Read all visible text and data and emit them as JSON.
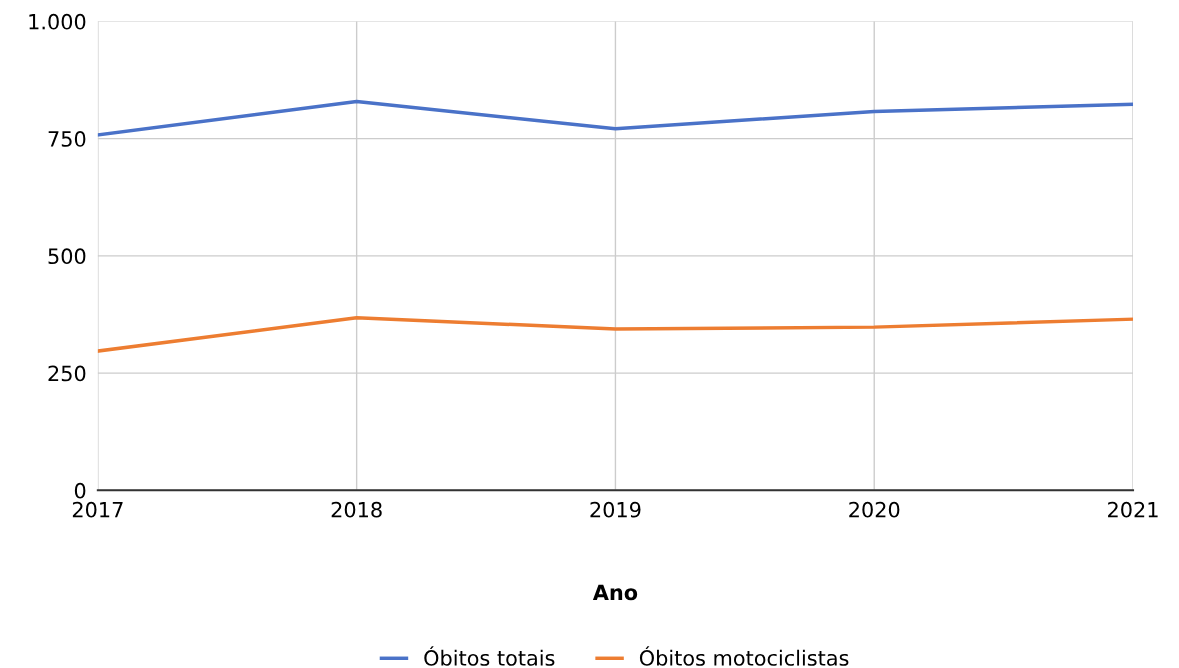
{
  "chart_data": {
    "type": "line",
    "xlabel": "Ano",
    "x": [
      2017,
      2018,
      2019,
      2020,
      2021
    ],
    "series": [
      {
        "name": "Óbitos totais",
        "color": "#4a72c8",
        "values": [
          758,
          829,
          771,
          808,
          823
        ]
      },
      {
        "name": "Óbitos motociclistas",
        "color": "#ed7d31",
        "values": [
          297,
          368,
          344,
          348,
          365
        ]
      }
    ],
    "xlim": [
      2017,
      2021
    ],
    "xticks": [
      2017,
      2018,
      2019,
      2020,
      2021
    ],
    "ylim": [
      0,
      1000
    ],
    "yticks": [
      0,
      250,
      500,
      750,
      {
        "value": 1000,
        "label": "1.000"
      }
    ],
    "grid": true,
    "legend": "bottom",
    "marker": "none",
    "line_style": "solid"
  }
}
